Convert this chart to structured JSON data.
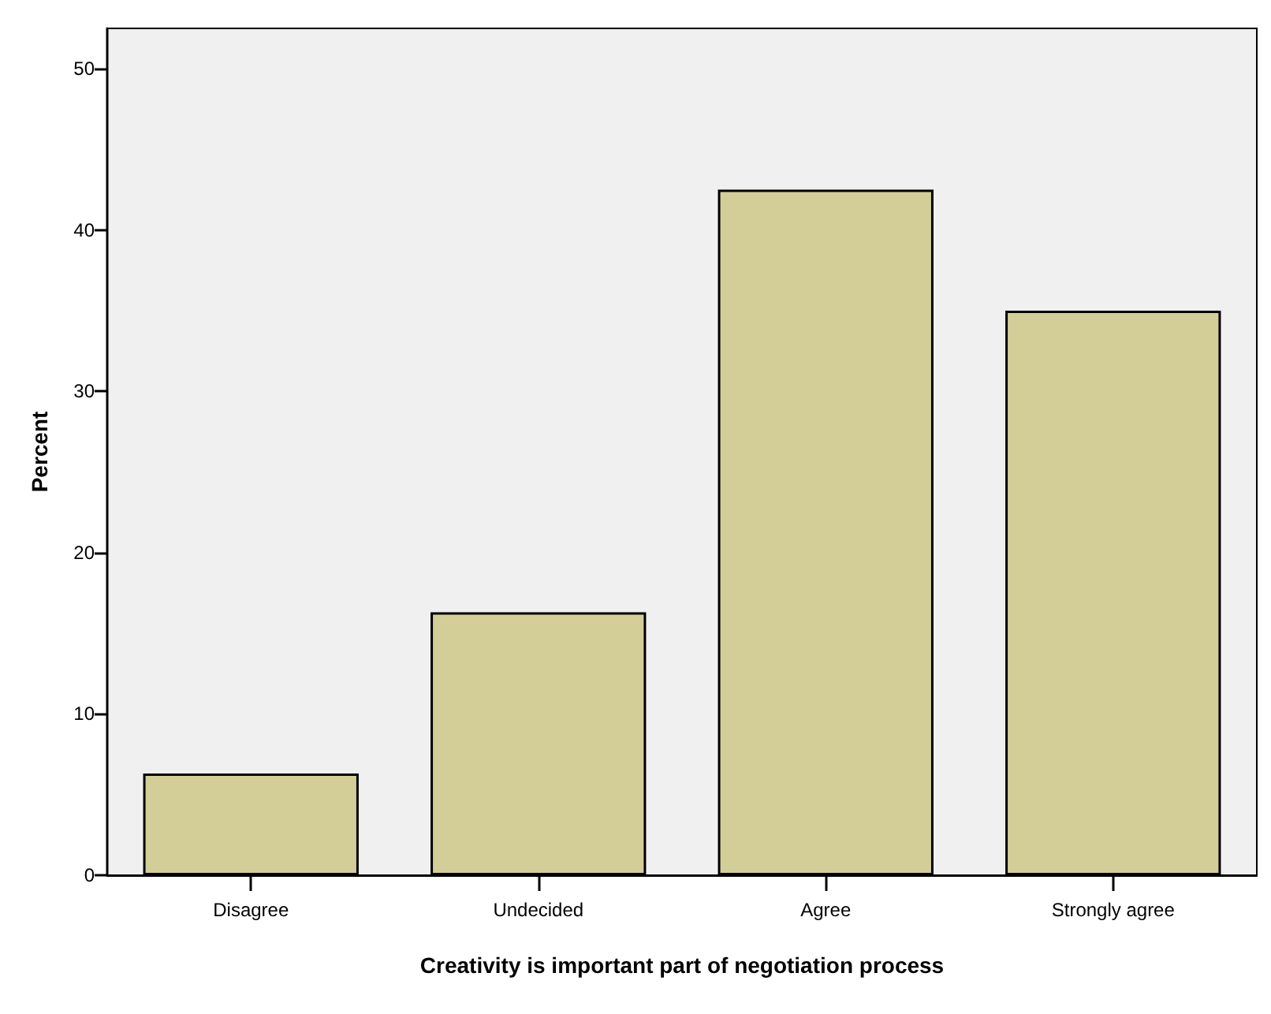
{
  "chart_data": {
    "type": "bar",
    "xlabel": "Creativity is important part of negotiation process",
    "ylabel": "Percent",
    "categories": [
      "Disagree",
      "Undecided",
      "Agree",
      "Strongly agree"
    ],
    "values": [
      6.3,
      16.3,
      42.5,
      35
    ],
    "color": "#d3ce97",
    "ylim": [
      0,
      52.5
    ],
    "yticks": [
      0,
      10,
      20,
      30,
      40,
      50
    ],
    "grid": false
  }
}
